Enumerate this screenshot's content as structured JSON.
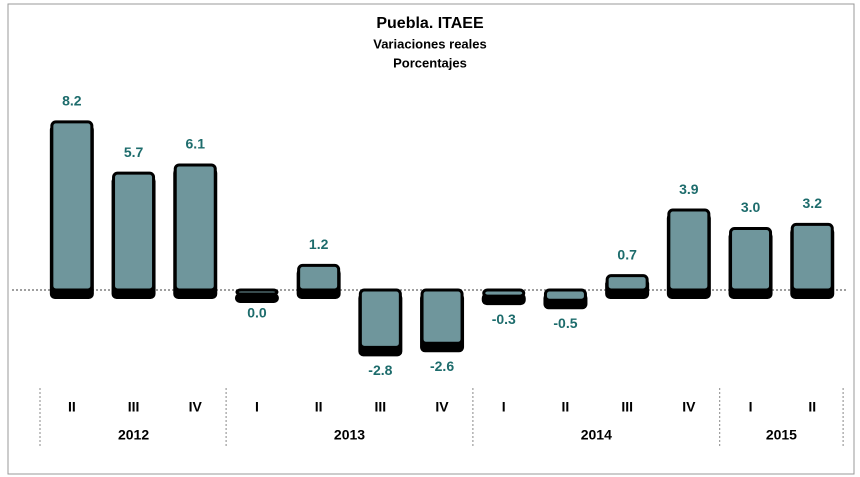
{
  "chart_data": {
    "type": "bar",
    "title": "Puebla. ITAEE",
    "subtitle": "Variaciones reales",
    "unit_label": "Porcentajes",
    "groups": [
      {
        "label": "2012",
        "categories": [
          "II",
          "III",
          "IV"
        ]
      },
      {
        "label": "2013",
        "categories": [
          "I",
          "II",
          "III",
          "IV"
        ]
      },
      {
        "label": "2014",
        "categories": [
          "I",
          "II",
          "III",
          "IV"
        ]
      },
      {
        "label": "2015",
        "categories": [
          "I",
          "II"
        ]
      }
    ],
    "values": [
      8.2,
      5.7,
      6.1,
      0.0,
      1.2,
      -2.8,
      -2.6,
      -0.3,
      -0.5,
      0.7,
      3.9,
      3.0,
      3.2
    ],
    "value_labels": [
      "8.2",
      "5.7",
      "6.1",
      "0.0",
      "1.2",
      "-2.8",
      "-2.6",
      "-0.3",
      "-0.5",
      "0.7",
      "3.9",
      "3.0",
      "3.2"
    ],
    "color": "#6f969c",
    "ylim": [
      -4,
      10
    ]
  }
}
